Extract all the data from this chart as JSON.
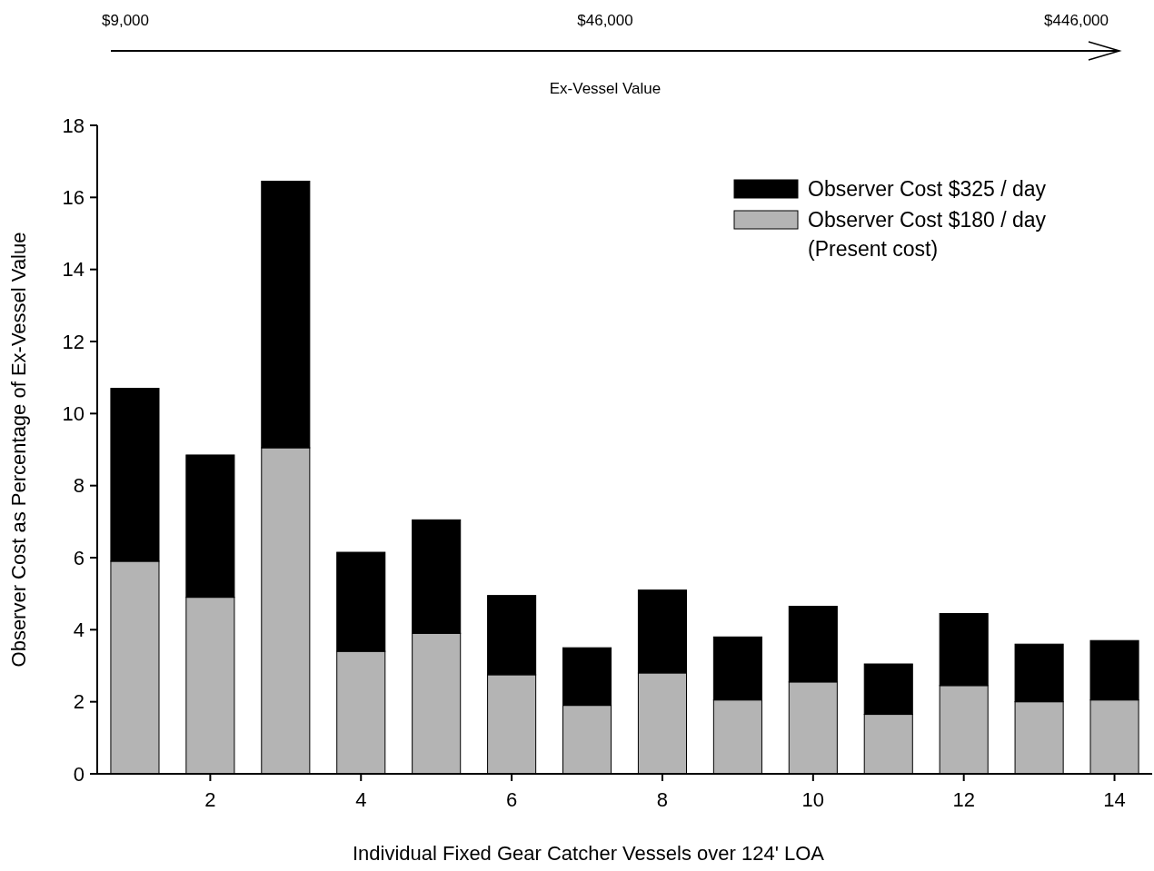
{
  "chart_data": {
    "type": "bar",
    "stacked": true,
    "x": [
      1,
      2,
      3,
      4,
      5,
      6,
      7,
      8,
      9,
      10,
      11,
      12,
      13,
      14
    ],
    "xlim": [
      0.5,
      14.5
    ],
    "xticks": [
      2,
      4,
      6,
      8,
      10,
      12,
      14
    ],
    "ylim": [
      0,
      18
    ],
    "yticks": [
      0,
      2,
      4,
      6,
      8,
      10,
      12,
      14,
      16,
      18
    ],
    "xlabel": "Individual Fixed Gear Catcher Vessels over 124' LOA",
    "ylabel": "Observer Cost as Percentage of Ex-Vessel Value",
    "annotations": [
      "$9,000",
      "$46,000",
      "$446,000",
      "Ex-Vessel Value"
    ],
    "legend": "top right",
    "grid": false,
    "series": [
      {
        "name": "Observer Cost $180 / day (Present cost)",
        "color": "#b4b4b4",
        "values": [
          5.9,
          4.9,
          9.05,
          3.4,
          3.9,
          2.75,
          1.9,
          2.8,
          2.05,
          2.55,
          1.65,
          2.45,
          2,
          2.05
        ]
      },
      {
        "name": "Observer Cost $325 / day",
        "color": "#000000",
        "values": [
          4.8,
          3.95,
          7.4,
          2.75,
          3.15,
          2.2,
          1.6,
          2.3,
          1.75,
          2.1,
          1.4,
          2,
          1.6,
          1.65
        ]
      }
    ]
  }
}
